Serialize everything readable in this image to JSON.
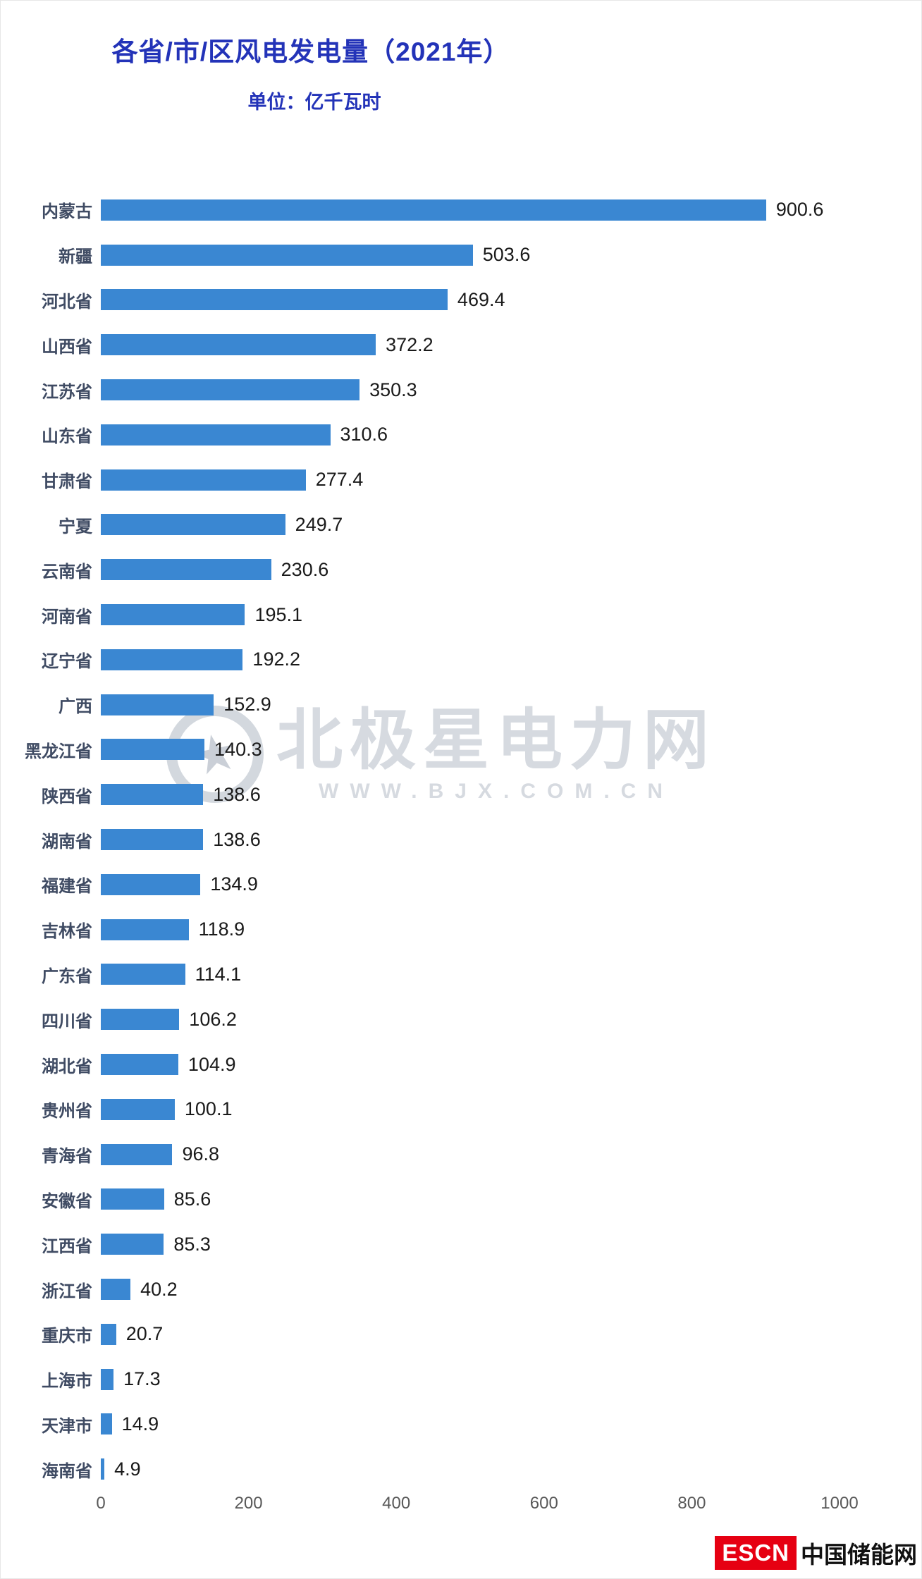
{
  "title": "各省/市/区风电发电量（2021年）",
  "subtitle": "单位：亿千瓦时",
  "watermark": {
    "star": "★",
    "line1": "北极星电力网",
    "line2": "WWW.BJX.COM.CN"
  },
  "footer": {
    "logo_text": "ESCN",
    "site_name": "中国储能网"
  },
  "colors": {
    "bar": "#3a87d2",
    "title": "#2333b8",
    "label": "#3f4b63",
    "value": "#1a1a1a",
    "axis": "#595959",
    "logo_red": "#e60012"
  },
  "chart_data": {
    "type": "bar",
    "orientation": "horizontal",
    "title": "各省/市/区风电发电量（2021年）",
    "unit": "亿千瓦时",
    "categories": [
      "内蒙古",
      "新疆",
      "河北省",
      "山西省",
      "江苏省",
      "山东省",
      "甘肃省",
      "宁夏",
      "云南省",
      "河南省",
      "辽宁省",
      "广西",
      "黑龙江省",
      "陕西省",
      "湖南省",
      "福建省",
      "吉林省",
      "广东省",
      "四川省",
      "湖北省",
      "贵州省",
      "青海省",
      "安徽省",
      "江西省",
      "浙江省",
      "重庆市",
      "上海市",
      "天津市",
      "海南省"
    ],
    "values": [
      900.6,
      503.6,
      469.4,
      372.2,
      350.3,
      310.6,
      277.4,
      249.7,
      230.6,
      195.1,
      192.2,
      152.9,
      140.3,
      138.6,
      138.6,
      134.9,
      118.9,
      114.1,
      106.2,
      104.9,
      100.1,
      96.8,
      85.6,
      85.3,
      40.2,
      20.7,
      17.3,
      14.9,
      4.9
    ],
    "xlim": [
      0,
      1000
    ],
    "x_ticks": [
      0,
      200,
      400,
      600,
      800,
      1000
    ],
    "grid": false,
    "value_labels": true,
    "legend": false
  }
}
